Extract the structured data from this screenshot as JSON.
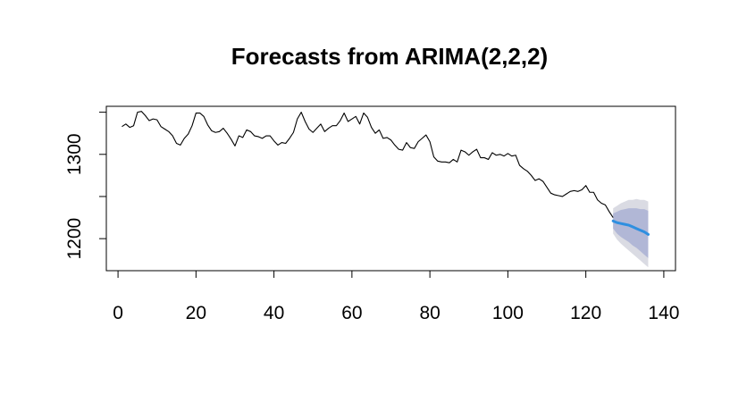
{
  "chart_data": {
    "type": "line",
    "title": "Forecasts from ARIMA(2,2,2)",
    "xlabel": "",
    "ylabel": "",
    "xlim": [
      -3,
      143
    ],
    "ylim": [
      1162,
      1357
    ],
    "x_ticks": [
      0,
      20,
      40,
      60,
      80,
      100,
      120,
      140
    ],
    "y_ticks": [
      1200,
      1300
    ],
    "y_tick_marks": [
      1200,
      1250,
      1300,
      1350
    ],
    "grid": false,
    "legend": "none",
    "colors": {
      "history": "#000000",
      "forecast": "#2F8FE0",
      "interval_80": "#B1B7D6",
      "interval_95": "#DADBE3"
    },
    "series": [
      {
        "x": [
          1,
          2,
          3,
          4,
          5,
          6,
          7,
          8,
          9,
          10,
          11,
          12,
          13,
          14,
          15,
          16,
          17,
          18,
          19,
          20,
          21,
          22,
          23,
          24,
          25,
          26,
          27,
          28,
          29,
          30,
          31,
          32,
          33,
          34,
          35,
          36,
          37,
          38,
          39,
          40,
          41,
          42,
          43,
          44,
          45,
          46,
          47,
          48,
          49,
          50,
          51,
          52,
          53,
          54,
          55,
          56,
          57,
          58,
          59,
          60,
          61,
          62,
          63,
          64,
          65,
          66,
          67,
          68,
          69,
          70,
          71,
          72,
          73,
          74,
          75,
          76,
          77,
          78,
          79,
          80,
          81,
          82,
          83,
          84,
          85,
          86,
          87,
          88,
          89,
          90,
          91,
          92,
          93,
          94,
          95,
          96,
          97,
          98,
          99,
          100,
          101,
          102,
          103,
          104,
          105,
          106,
          107,
          108,
          109,
          110,
          111,
          112,
          113,
          114,
          115,
          116,
          117,
          118,
          119,
          120,
          121,
          122,
          123,
          124,
          125,
          126,
          127
        ],
        "values": [
          1333,
          1336,
          1332,
          1334,
          1350,
          1351,
          1346,
          1340,
          1342,
          1341,
          1333,
          1330,
          1327,
          1322,
          1313,
          1311,
          1319,
          1324,
          1334,
          1349,
          1349,
          1345,
          1335,
          1328,
          1326,
          1327,
          1331,
          1325,
          1318,
          1310,
          1322,
          1320,
          1329,
          1327,
          1322,
          1321,
          1319,
          1322,
          1322,
          1316,
          1311,
          1314,
          1313,
          1319,
          1326,
          1342,
          1350,
          1339,
          1330,
          1326,
          1331,
          1336,
          1327,
          1331,
          1334,
          1334,
          1340,
          1349,
          1339,
          1342,
          1345,
          1336,
          1349,
          1344,
          1332,
          1325,
          1329,
          1319,
          1320,
          1317,
          1311,
          1306,
          1305,
          1314,
          1308,
          1307,
          1315,
          1319,
          1323,
          1315,
          1297,
          1292,
          1291,
          1291,
          1290,
          1294,
          1291,
          1305,
          1303,
          1299,
          1303,
          1306,
          1296,
          1296,
          1294,
          1302,
          1299,
          1300,
          1298,
          1301,
          1298,
          1299,
          1287,
          1283,
          1280,
          1275,
          1269,
          1271,
          1268,
          1261,
          1254,
          1252,
          1251,
          1250,
          1253,
          1256,
          1257,
          1256,
          1258,
          1263,
          1255,
          1255,
          1246,
          1242,
          1240,
          1232,
          1225
        ]
      },
      {
        "name": "forecast",
        "x": [
          127,
          128,
          129,
          130,
          131,
          132,
          133,
          134,
          135,
          136
        ],
        "values": [
          1221,
          1219,
          1218,
          1217,
          1216,
          1214,
          1212,
          1210,
          1208,
          1205
        ],
        "lo80": [
          1212,
          1206,
          1202,
          1199,
          1196,
          1192,
          1189,
          1185,
          1181,
          1177
        ],
        "hi80": [
          1230,
          1232,
          1234,
          1235,
          1236,
          1236,
          1236,
          1235,
          1235,
          1233
        ],
        "lo95": [
          1206,
          1199,
          1194,
          1190,
          1186,
          1182,
          1178,
          1174,
          1170,
          1166
        ],
        "hi95": [
          1236,
          1239,
          1242,
          1244,
          1246,
          1246,
          1247,
          1246,
          1246,
          1244
        ]
      }
    ]
  }
}
